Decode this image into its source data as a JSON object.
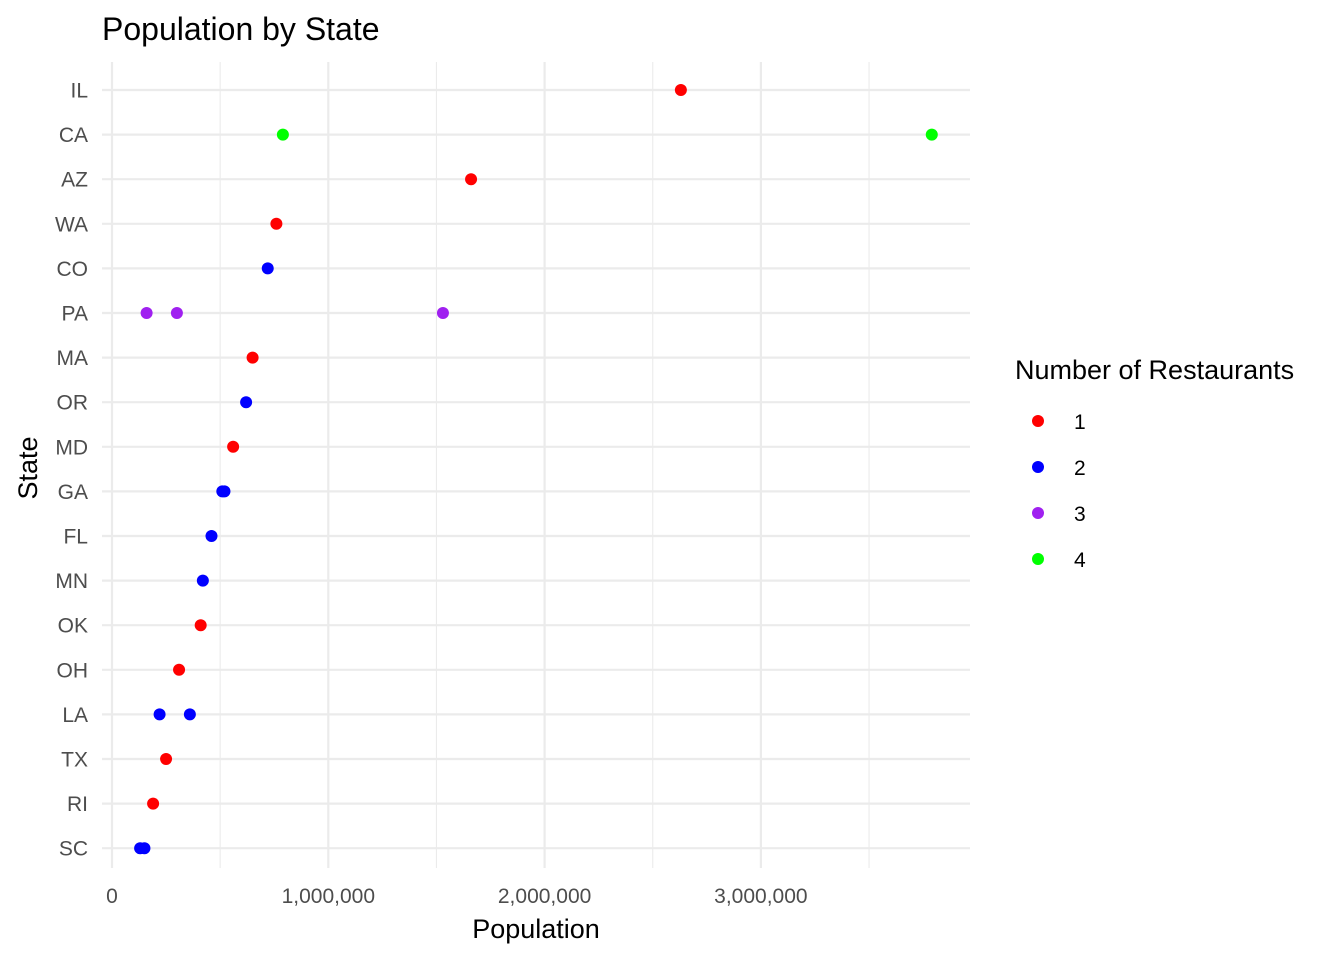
{
  "chart_data": {
    "type": "scatter",
    "title": "Population by State",
    "xlabel": "Population",
    "ylabel": "State",
    "xlim": [
      0,
      3800000
    ],
    "x_ticks": [
      0,
      1000000,
      2000000,
      3000000
    ],
    "x_tick_labels": [
      "0",
      "1,000,000",
      "2,000,000",
      "3,000,000"
    ],
    "x_minor_ticks": [
      500000,
      1500000,
      2500000,
      3500000
    ],
    "categories": [
      "SC",
      "RI",
      "TX",
      "LA",
      "OH",
      "OK",
      "MN",
      "FL",
      "GA",
      "MD",
      "OR",
      "MA",
      "PA",
      "CO",
      "WA",
      "AZ",
      "CA",
      "IL"
    ],
    "grid": true,
    "legend": {
      "title": "Number of Restaurants",
      "position": "right",
      "entries": [
        {
          "label": "1",
          "color": "#ff0000"
        },
        {
          "label": "2",
          "color": "#0000ff"
        },
        {
          "label": "3",
          "color": "#a020f0"
        },
        {
          "label": "4",
          "color": "#00ff00"
        }
      ]
    },
    "points": [
      {
        "state": "IL",
        "x": 2630000,
        "group": "1"
      },
      {
        "state": "CA",
        "x": 790000,
        "group": "4"
      },
      {
        "state": "CA",
        "x": 3790000,
        "group": "4"
      },
      {
        "state": "AZ",
        "x": 1660000,
        "group": "1"
      },
      {
        "state": "WA",
        "x": 760000,
        "group": "1"
      },
      {
        "state": "CO",
        "x": 720000,
        "group": "2"
      },
      {
        "state": "PA",
        "x": 160000,
        "group": "3"
      },
      {
        "state": "PA",
        "x": 300000,
        "group": "3"
      },
      {
        "state": "PA",
        "x": 1530000,
        "group": "3"
      },
      {
        "state": "MA",
        "x": 650000,
        "group": "1"
      },
      {
        "state": "OR",
        "x": 620000,
        "group": "2"
      },
      {
        "state": "MD",
        "x": 560000,
        "group": "1"
      },
      {
        "state": "GA",
        "x": 510000,
        "group": "2"
      },
      {
        "state": "GA",
        "x": 520000,
        "group": "2"
      },
      {
        "state": "FL",
        "x": 460000,
        "group": "2"
      },
      {
        "state": "MN",
        "x": 420000,
        "group": "2"
      },
      {
        "state": "OK",
        "x": 410000,
        "group": "1"
      },
      {
        "state": "OH",
        "x": 310000,
        "group": "1"
      },
      {
        "state": "LA",
        "x": 220000,
        "group": "2"
      },
      {
        "state": "LA",
        "x": 360000,
        "group": "2"
      },
      {
        "state": "TX",
        "x": 250000,
        "group": "1"
      },
      {
        "state": "RI",
        "x": 190000,
        "group": "1"
      },
      {
        "state": "SC",
        "x": 130000,
        "group": "2"
      },
      {
        "state": "SC",
        "x": 150000,
        "group": "2"
      }
    ]
  }
}
